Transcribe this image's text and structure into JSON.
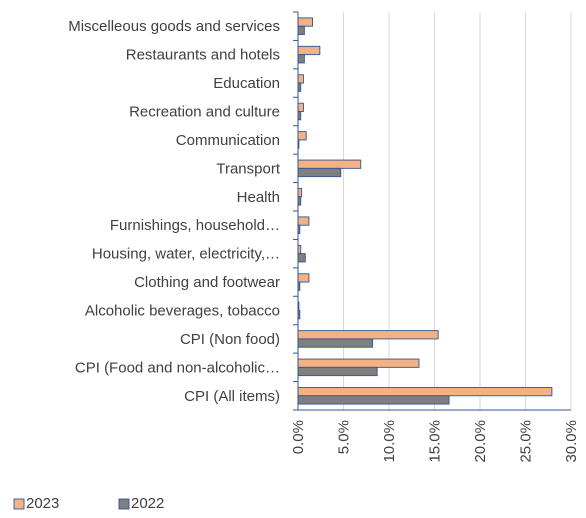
{
  "chart_data": {
    "type": "bar",
    "orientation": "horizontal",
    "categories": [
      "Miscelleous goods and services",
      "Restaurants and hotels",
      "Education",
      "Recreation and culture",
      "Communication",
      "Transport",
      "Health",
      "Furnishings, household…",
      "Housing, water, electricity,…",
      "Clothing and footwear",
      "Alcoholic beverages, tobacco",
      "CPI (Non food)",
      "CPI (Food and non-alcoholic…",
      "CPI (All items)"
    ],
    "series": [
      {
        "name": "2023",
        "color": "#F4B183",
        "values": [
          1.6,
          2.4,
          0.6,
          0.6,
          0.9,
          6.9,
          0.4,
          1.2,
          0.3,
          1.2,
          0.1,
          15.4,
          13.3,
          27.9
        ]
      },
      {
        "name": "2022",
        "color": "#7F7F7F",
        "values": [
          0.7,
          0.7,
          0.3,
          0.3,
          0.1,
          4.7,
          0.3,
          0.2,
          0.8,
          0.2,
          0.2,
          8.2,
          8.7,
          16.6
        ]
      }
    ],
    "xlim": [
      0,
      30
    ],
    "xticks": [
      "0.0%",
      "5.0%",
      "10.0%",
      "15.0%",
      "20.0%",
      "25.0%",
      "30.0%"
    ],
    "grid": true,
    "legend": "bottom-left",
    "bar_edge_color": "#2F5597",
    "axis_color": "#2F5597",
    "title": "",
    "xlabel": "",
    "ylabel": ""
  }
}
